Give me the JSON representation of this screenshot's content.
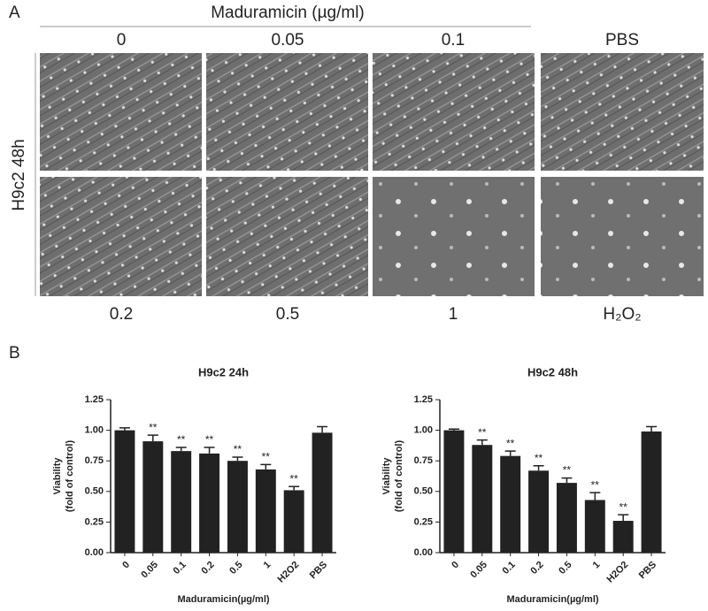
{
  "panel_a": {
    "label": "A",
    "header": "Maduramicin (µg/ml)",
    "side_label": "H9c2 48h",
    "top_labels": [
      "0",
      "0.05",
      "0.1",
      "PBS"
    ],
    "bottom_labels": [
      "0.2",
      "0.5",
      "1",
      "H₂O₂"
    ]
  },
  "panel_b": {
    "label": "B"
  },
  "chart_data": [
    {
      "type": "bar",
      "title": "H9c2 24h",
      "ylabel": [
        "Viability",
        "(fold of control)"
      ],
      "xlabel": "Maduramicin(µg/ml)",
      "categories": [
        "0",
        "0.05",
        "0.1",
        "0.2",
        "0.5",
        "1",
        "H2O2",
        "PBS"
      ],
      "values": [
        1.0,
        0.91,
        0.83,
        0.81,
        0.75,
        0.68,
        0.51,
        0.98
      ],
      "errors": [
        0.02,
        0.05,
        0.03,
        0.05,
        0.03,
        0.04,
        0.03,
        0.05
      ],
      "significance": [
        null,
        "**",
        "**",
        "**",
        "**",
        "**",
        "**",
        null
      ],
      "color": "#222222",
      "ylim": [
        0,
        1.25
      ],
      "yticks": [
        {
          "value": 0,
          "label": "0.00"
        },
        {
          "value": 0.25,
          "label": "0.25"
        },
        {
          "value": 0.5,
          "label": "0.50"
        },
        {
          "value": 0.75,
          "label": "0.75"
        },
        {
          "value": 1,
          "label": "1.00"
        },
        {
          "value": 1.25,
          "label": "1.25"
        }
      ]
    },
    {
      "type": "bar",
      "title": "H9c2 48h",
      "ylabel": [
        "Viability",
        "(fold of control)"
      ],
      "xlabel": "Maduramicin(µg/ml)",
      "categories": [
        "0",
        "0.05",
        "0.1",
        "0.2",
        "0.5",
        "1",
        "H2O2",
        "PBS"
      ],
      "values": [
        1.0,
        0.88,
        0.79,
        0.67,
        0.57,
        0.43,
        0.26,
        0.99
      ],
      "errors": [
        0.01,
        0.04,
        0.04,
        0.04,
        0.04,
        0.06,
        0.05,
        0.04
      ],
      "significance": [
        null,
        "**",
        "**",
        "**",
        "**",
        "**",
        "**",
        null
      ],
      "color": "#222222",
      "ylim": [
        0,
        1.25
      ],
      "yticks": [
        {
          "value": 0,
          "label": "0.00"
        },
        {
          "value": 0.25,
          "label": "0.25"
        },
        {
          "value": 0.5,
          "label": "0.50"
        },
        {
          "value": 0.75,
          "label": "0.75"
        },
        {
          "value": 1,
          "label": "1.00"
        },
        {
          "value": 1.25,
          "label": "1.25"
        }
      ]
    }
  ]
}
